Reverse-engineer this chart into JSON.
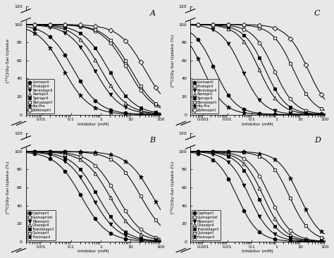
{
  "panels": {
    "A": {
      "label": "A",
      "xrange_log": [
        0.003,
        100
      ],
      "xticks": [
        0.01,
        0.1,
        1,
        10,
        100
      ],
      "xticklabels": [
        "0.01",
        "0.1",
        "1",
        "10",
        "100"
      ],
      "ylabel": "[14C]Gly-Sar Uptake",
      "has_pct": false,
      "series": [
        {
          "name": "Lisinopril",
          "marker": "o",
          "filled": true,
          "ic50": 0.12,
          "hill": 1.0
        },
        {
          "name": "Enalapril",
          "marker": "o",
          "filled": false,
          "ic50": 8.0,
          "hill": 1.0
        },
        {
          "name": "Perindopril",
          "marker": "v",
          "filled": true,
          "ic50": 0.6,
          "hill": 1.0
        },
        {
          "name": "Ramipril",
          "marker": "^",
          "filled": false,
          "ic50": 1.0,
          "hill": 1.0
        },
        {
          "name": "Spirapril",
          "marker": "s",
          "filled": true,
          "ic50": 1.8,
          "hill": 1.0
        },
        {
          "name": "Benazepril",
          "marker": "s",
          "filled": false,
          "ic50": 10.0,
          "hill": 1.0
        },
        {
          "name": "Ala-Pro",
          "marker": "*",
          "filled": true,
          "ic50": 0.055,
          "hill": 1.0
        },
        {
          "name": "Zofenopril",
          "marker": "D",
          "filled": false,
          "ic50": 30.0,
          "hill": 1.0
        }
      ]
    },
    "B": {
      "label": "B",
      "xrange_log": [
        0.003,
        100
      ],
      "xticks": [
        0.01,
        0.1,
        1,
        10,
        100
      ],
      "xticklabels": [
        "0.01",
        "0.1",
        "1",
        "10",
        "100"
      ],
      "ylabel": "[14C]Gly-Sar Uptake (%)",
      "has_pct": true,
      "series": [
        {
          "name": "Captopril",
          "marker": "o",
          "filled": true,
          "ic50": 0.22,
          "hill": 1.0
        },
        {
          "name": "Quinaprilat",
          "marker": "o",
          "filled": false,
          "ic50": 3.5,
          "hill": 1.0
        },
        {
          "name": "Moexipril",
          "marker": "v",
          "filled": true,
          "ic50": 0.5,
          "hill": 1.0
        },
        {
          "name": "Cilazapril",
          "marker": "^",
          "filled": false,
          "ic50": 2.0,
          "hill": 1.0
        },
        {
          "name": "Trandolapril",
          "marker": "s",
          "filled": true,
          "ic50": 0.8,
          "hill": 1.0
        },
        {
          "name": "Quinapril",
          "marker": "s",
          "filled": false,
          "ic50": 22.0,
          "hill": 1.0
        },
        {
          "name": "Fosinopril",
          "marker": "*",
          "filled": true,
          "ic50": 55.0,
          "hill": 1.0
        }
      ]
    },
    "C": {
      "label": "C",
      "xrange_log": [
        0.0003,
        100
      ],
      "xticks": [
        0.001,
        0.01,
        0.1,
        1,
        10,
        100
      ],
      "xticklabels": [
        "0.001",
        "0.01",
        "0.1",
        "1",
        "10",
        "100"
      ],
      "ylabel": "[14C]Gly-Sar Uptake (%)",
      "has_pct": true,
      "series": [
        {
          "name": "Lisinopril",
          "marker": "o",
          "filled": true,
          "ic50": 0.003,
          "hill": 1.0
        },
        {
          "name": "Enalapril",
          "marker": "o",
          "filled": false,
          "ic50": 0.8,
          "hill": 1.0
        },
        {
          "name": "Perindopril",
          "marker": "v",
          "filled": true,
          "ic50": 0.04,
          "hill": 1.0
        },
        {
          "name": "Ramipril",
          "marker": "^",
          "filled": false,
          "ic50": 0.2,
          "hill": 1.0
        },
        {
          "name": "Spirapril",
          "marker": "s",
          "filled": true,
          "ic50": 0.35,
          "hill": 1.0
        },
        {
          "name": "Benazepril",
          "marker": "s",
          "filled": false,
          "ic50": 5.0,
          "hill": 1.0
        },
        {
          "name": "Ala-Pro",
          "marker": "*",
          "filled": true,
          "ic50": 0.001,
          "hill": 1.0
        },
        {
          "name": "Zofenopril",
          "marker": "D",
          "filled": false,
          "ic50": 20.0,
          "hill": 1.0
        }
      ]
    },
    "D": {
      "label": "D",
      "xrange_log": [
        0.0003,
        100
      ],
      "xticks": [
        0.001,
        0.01,
        0.1,
        1,
        10,
        100
      ],
      "xticklabels": [
        "0.001",
        "0.01",
        "0.1",
        "1",
        "10",
        "100"
      ],
      "ylabel": "[14C]Gly-Sar Uptake (%)",
      "has_pct": true,
      "series": [
        {
          "name": "Captopril",
          "marker": "o",
          "filled": true,
          "ic50": 0.025,
          "hill": 1.0
        },
        {
          "name": "Quinaprilat",
          "marker": "o",
          "filled": false,
          "ic50": 0.55,
          "hill": 1.0
        },
        {
          "name": "Moexipril",
          "marker": "v",
          "filled": true,
          "ic50": 0.08,
          "hill": 1.0
        },
        {
          "name": "Cilazapril",
          "marker": "^",
          "filled": false,
          "ic50": 0.3,
          "hill": 1.0
        },
        {
          "name": "Trandolapril",
          "marker": "s",
          "filled": true,
          "ic50": 0.18,
          "hill": 1.0
        },
        {
          "name": "Quinapril",
          "marker": "s",
          "filled": false,
          "ic50": 3.5,
          "hill": 1.0
        },
        {
          "name": "Fosinopril",
          "marker": "*",
          "filled": true,
          "ic50": 9.0,
          "hill": 1.0
        }
      ]
    }
  },
  "ylim": [
    0,
    120
  ],
  "yticks": [
    0,
    20,
    40,
    60,
    80,
    100,
    120
  ],
  "bg_color": "#e8e8e8"
}
